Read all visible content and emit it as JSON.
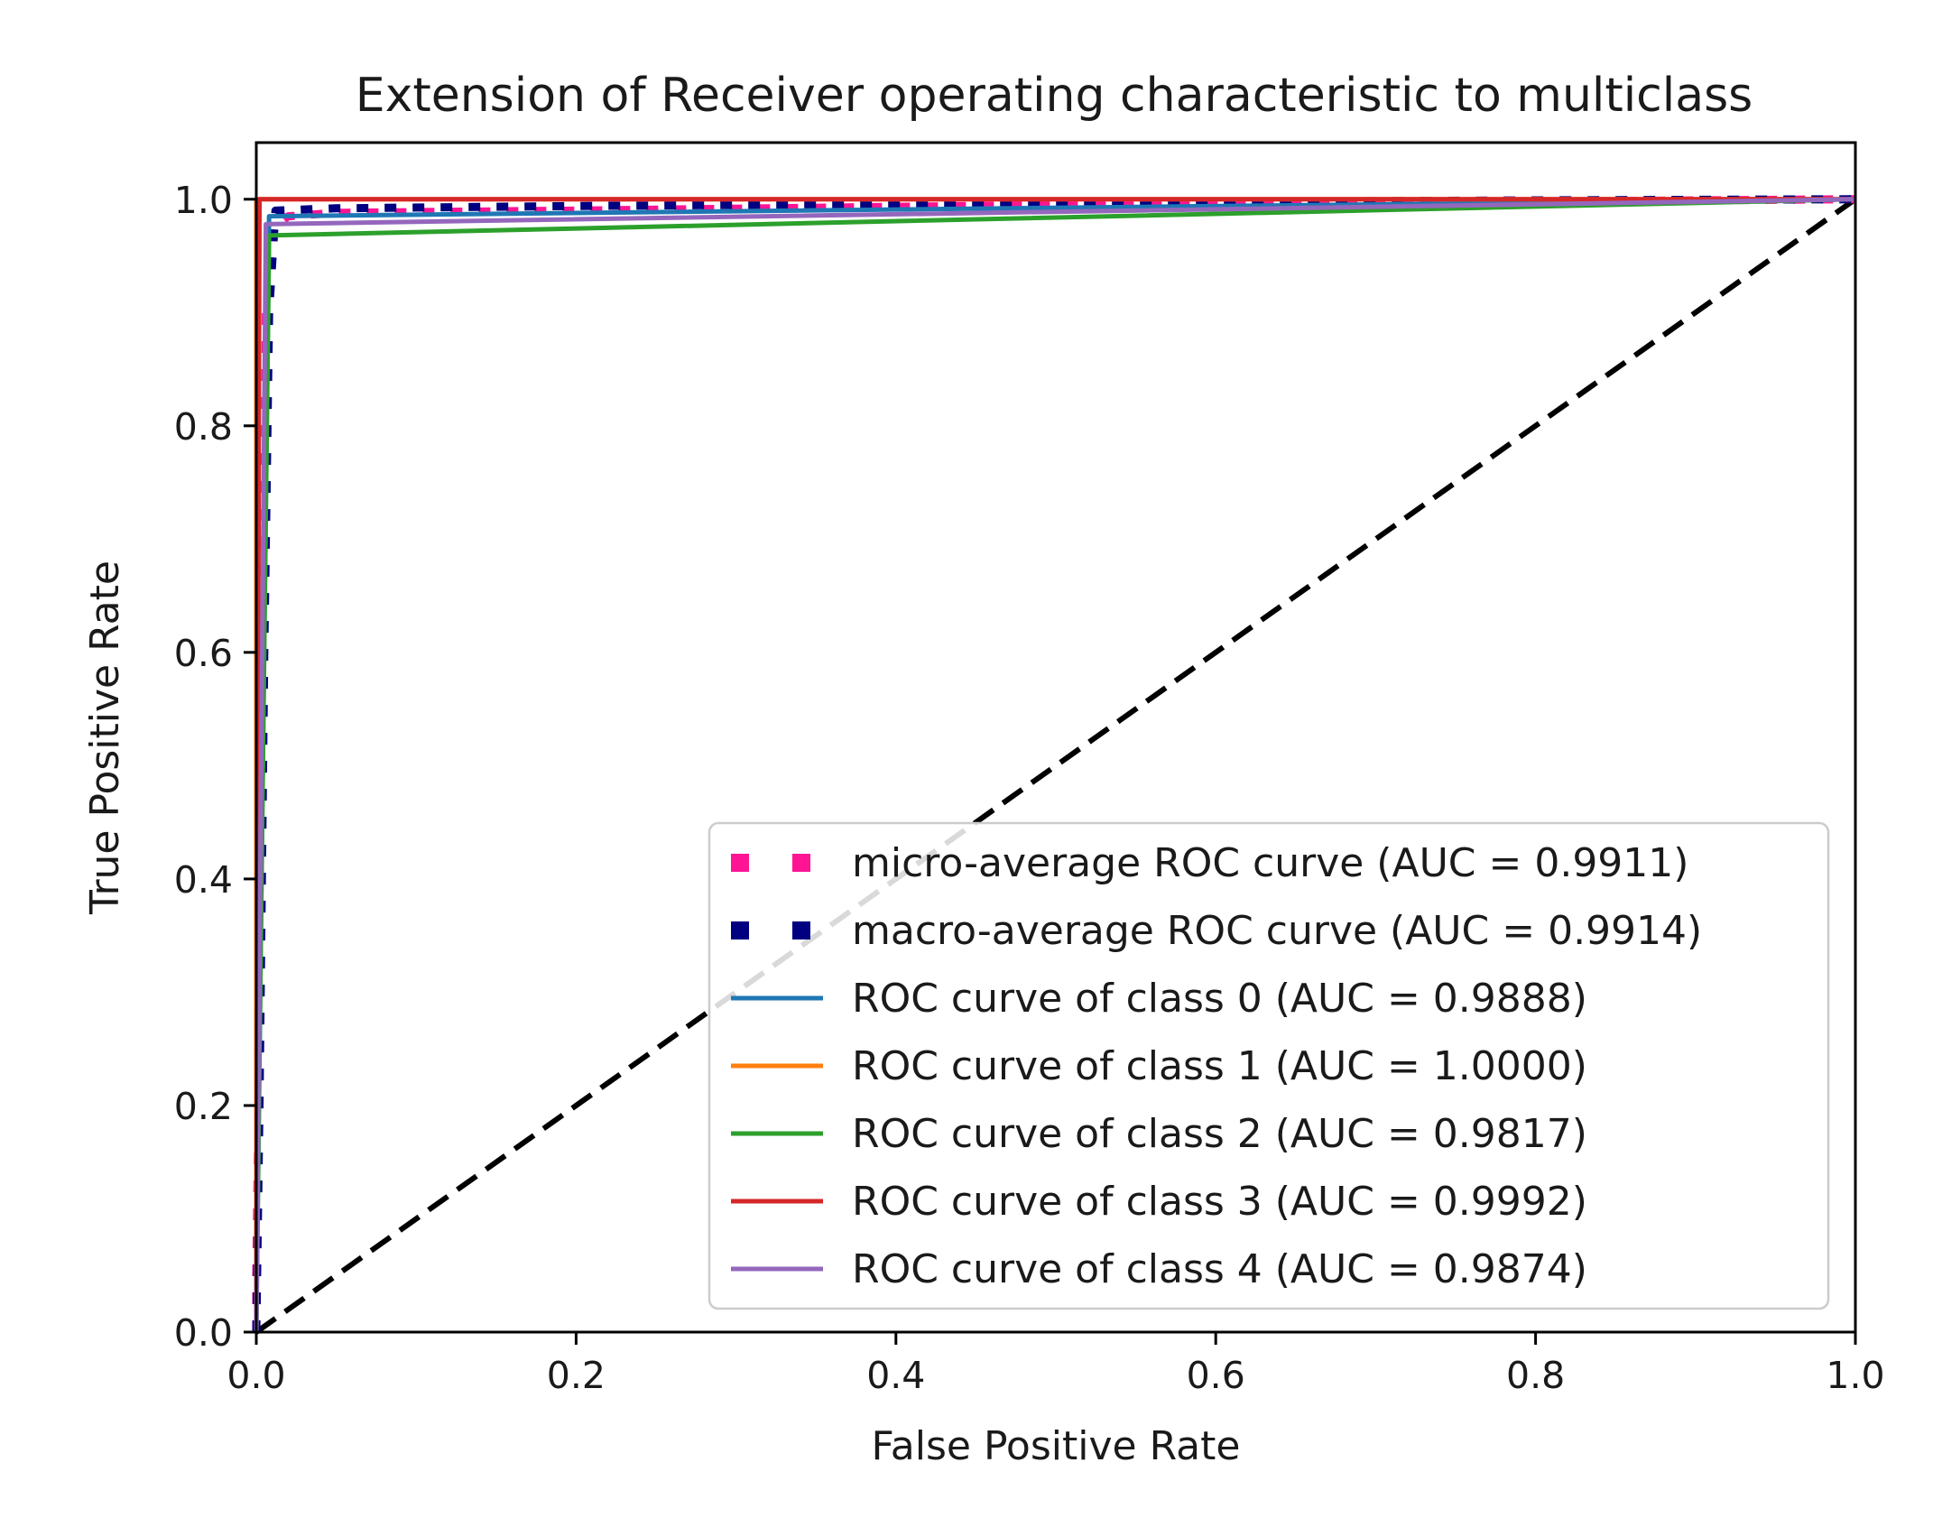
{
  "chart_data": {
    "type": "line",
    "title": "Extension of Receiver operating characteristic to multiclass",
    "xlabel": "False Positive Rate",
    "ylabel": "True Positive Rate",
    "xlim": [
      0.0,
      1.0
    ],
    "ylim": [
      0.0,
      1.05
    ],
    "xticks": [
      "0.0",
      "0.2",
      "0.4",
      "0.6",
      "0.8",
      "1.0"
    ],
    "yticks": [
      "0.0",
      "0.2",
      "0.4",
      "0.6",
      "0.8",
      "1.0"
    ],
    "grid": false,
    "legend_position": "lower-right",
    "series": [
      {
        "name": "micro-average ROC curve (AUC = 0.9911)",
        "color": "#ff1493",
        "style": "dotted",
        "x": [
          0.0,
          0.0,
          0.004,
          0.006,
          0.01,
          0.02,
          0.05,
          0.2,
          0.5,
          0.8,
          1.0
        ],
        "y": [
          0.0,
          0.05,
          0.5,
          0.9,
          0.975,
          0.985,
          0.988,
          0.99,
          0.995,
          0.998,
          1.0
        ]
      },
      {
        "name": "macro-average ROC curve (AUC = 0.9914)",
        "color": "#000080",
        "style": "dotted",
        "x": [
          0.0,
          0.002,
          0.005,
          0.008,
          0.012,
          0.05,
          0.2,
          0.5,
          0.8,
          1.0
        ],
        "y": [
          0.0,
          0.2,
          0.6,
          0.9,
          0.99,
          0.992,
          0.994,
          0.997,
          0.999,
          1.0
        ]
      },
      {
        "name": "ROC curve of class 0 (AUC = 0.9888)",
        "color": "#1f77b4",
        "style": "solid",
        "x": [
          0.0,
          0.0,
          0.008,
          1.0
        ],
        "y": [
          0.0,
          0.0,
          0.985,
          1.0
        ]
      },
      {
        "name": "ROC curve of class 1 (AUC = 1.0000)",
        "color": "#ff7f0e",
        "style": "solid",
        "x": [
          0.0,
          0.0,
          1.0
        ],
        "y": [
          0.0,
          1.0,
          1.0
        ]
      },
      {
        "name": "ROC curve of class 2 (AUC = 0.9817)",
        "color": "#2ca02c",
        "style": "solid",
        "x": [
          0.0,
          0.0,
          0.008,
          1.0
        ],
        "y": [
          0.0,
          0.0,
          0.968,
          1.0
        ]
      },
      {
        "name": "ROC curve of class 3 (AUC = 0.9992)",
        "color": "#d62728",
        "style": "solid",
        "x": [
          0.0,
          0.0,
          0.002,
          1.0
        ],
        "y": [
          0.0,
          0.0,
          1.0,
          1.0
        ]
      },
      {
        "name": "ROC curve of class 4 (AUC = 0.9874)",
        "color": "#9467bd",
        "style": "solid",
        "x": [
          0.0,
          0.0,
          0.006,
          1.0
        ],
        "y": [
          0.0,
          0.0,
          0.978,
          1.0
        ]
      },
      {
        "name": "",
        "color": "#000000",
        "style": "dashed",
        "x": [
          0.0,
          1.0
        ],
        "y": [
          0.0,
          1.0
        ]
      }
    ]
  }
}
